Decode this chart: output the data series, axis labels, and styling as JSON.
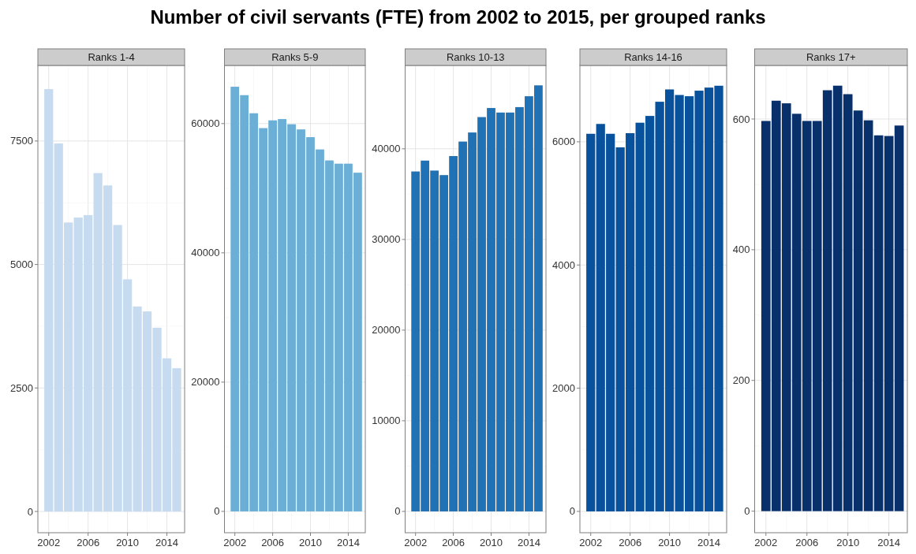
{
  "chart_data": [
    {
      "type": "bar",
      "title": "Number of civil servants (FTE) from 2002 to 2015, per grouped ranks",
      "subtitle": "Ranks 1-4",
      "x": [
        2002,
        2003,
        2004,
        2005,
        2006,
        2007,
        2008,
        2009,
        2010,
        2011,
        2012,
        2013,
        2014,
        2015
      ],
      "values": [
        8550,
        7450,
        5850,
        5950,
        6000,
        6850,
        6600,
        5800,
        4700,
        4150,
        4050,
        3720,
        3100,
        2900
      ],
      "color": "#c6dbef",
      "xlim": [
        2000.9,
        2015.8
      ],
      "xticks": [
        2002,
        2006,
        2010,
        2014
      ],
      "ylim": [
        -430,
        9030
      ],
      "yticks": [
        0,
        2500,
        5000,
        7500
      ],
      "grid": true
    },
    {
      "type": "bar",
      "subtitle": "Ranks 5-9",
      "x": [
        2002,
        2003,
        2004,
        2005,
        2006,
        2007,
        2008,
        2009,
        2010,
        2011,
        2012,
        2013,
        2014,
        2015
      ],
      "values": [
        65700,
        64400,
        61600,
        59300,
        60500,
        60700,
        59900,
        59100,
        57900,
        56000,
        54300,
        53800,
        53800,
        52400
      ],
      "color": "#6baed6",
      "xlim": [
        2000.9,
        2015.8
      ],
      "xticks": [
        2002,
        2006,
        2010,
        2014
      ],
      "ylim": [
        -3300,
        69000
      ],
      "yticks": [
        0,
        20000,
        40000,
        60000
      ],
      "grid": true
    },
    {
      "type": "bar",
      "subtitle": "Ranks 10-13",
      "x": [
        2002,
        2003,
        2004,
        2005,
        2006,
        2007,
        2008,
        2009,
        2010,
        2011,
        2012,
        2013,
        2014,
        2015
      ],
      "values": [
        37500,
        38700,
        37600,
        37100,
        39200,
        40800,
        41800,
        43500,
        44500,
        44000,
        44000,
        44600,
        45800,
        47000
      ],
      "color": "#2171b5",
      "xlim": [
        2000.9,
        2015.8
      ],
      "xticks": [
        2002,
        2006,
        2010,
        2014
      ],
      "ylim": [
        -2350,
        49200
      ],
      "yticks": [
        0,
        10000,
        20000,
        30000,
        40000
      ],
      "grid": true
    },
    {
      "type": "bar",
      "subtitle": "Ranks 14-16",
      "x": [
        2002,
        2003,
        2004,
        2005,
        2006,
        2007,
        2008,
        2009,
        2010,
        2011,
        2012,
        2013,
        2014,
        2015
      ],
      "values": [
        6130,
        6290,
        6130,
        5910,
        6140,
        6310,
        6420,
        6650,
        6850,
        6760,
        6740,
        6830,
        6880,
        6910
      ],
      "color": "#08519c",
      "xlim": [
        2000.9,
        2015.8
      ],
      "xticks": [
        2002,
        2006,
        2010,
        2014
      ],
      "ylim": [
        -346,
        7240
      ],
      "yticks": [
        0,
        2000,
        4000,
        6000
      ],
      "grid": true
    },
    {
      "type": "bar",
      "subtitle": "Ranks 17+",
      "x": [
        2002,
        2003,
        2004,
        2005,
        2006,
        2007,
        2008,
        2009,
        2010,
        2011,
        2012,
        2013,
        2014,
        2015
      ],
      "values": [
        597,
        628,
        624,
        608,
        597,
        597,
        644,
        651,
        638,
        613,
        598,
        575,
        574,
        590
      ],
      "color": "#08306b",
      "xlim": [
        2000.9,
        2015.8
      ],
      "xticks": [
        2002,
        2006,
        2010,
        2014
      ],
      "ylim": [
        -33,
        682
      ],
      "yticks": [
        0,
        200,
        400,
        600
      ],
      "grid": true
    }
  ]
}
